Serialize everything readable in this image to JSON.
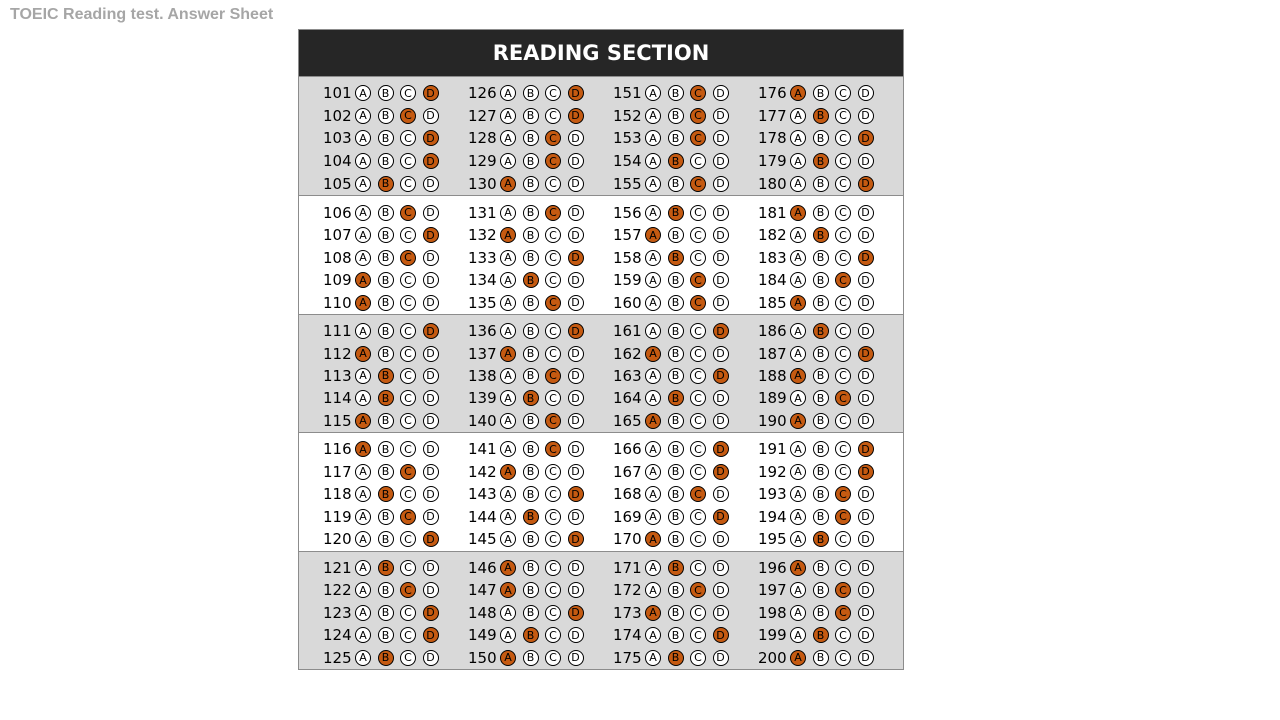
{
  "page_title": "TOEIC Reading test. Answer Sheet",
  "section_title": "READING SECTION",
  "choices": [
    "A",
    "B",
    "C",
    "D"
  ],
  "colors": {
    "header_bg": "#262626",
    "shade_bg": "#d9d9d9",
    "filled_bubble": "#c55a11",
    "title_text": "#a6a6a6"
  },
  "answers": {
    "101": "D",
    "102": "C",
    "103": "D",
    "104": "D",
    "105": "B",
    "106": "C",
    "107": "D",
    "108": "C",
    "109": "A",
    "110": "A",
    "111": "D",
    "112": "A",
    "113": "B",
    "114": "B",
    "115": "A",
    "116": "A",
    "117": "C",
    "118": "B",
    "119": "C",
    "120": "D",
    "121": "B",
    "122": "C",
    "123": "D",
    "124": "D",
    "125": "B",
    "126": "D",
    "127": "D",
    "128": "C",
    "129": "C",
    "130": "A",
    "131": "C",
    "132": "A",
    "133": "D",
    "134": "B",
    "135": "C",
    "136": "D",
    "137": "A",
    "138": "C",
    "139": "B",
    "140": "C",
    "141": "C",
    "142": "A",
    "143": "D",
    "144": "B",
    "145": "D",
    "146": "A",
    "147": "A",
    "148": "D",
    "149": "B",
    "150": "A",
    "151": "C",
    "152": "C",
    "153": "C",
    "154": "B",
    "155": "C",
    "156": "B",
    "157": "A",
    "158": "B",
    "159": "C",
    "160": "C",
    "161": "D",
    "162": "A",
    "163": "D",
    "164": "B",
    "165": "A",
    "166": "D",
    "167": "D",
    "168": "C",
    "169": "D",
    "170": "A",
    "171": "B",
    "172": "C",
    "173": "A",
    "174": "D",
    "175": "B",
    "176": "A",
    "177": "B",
    "178": "D",
    "179": "B",
    "180": "D",
    "181": "A",
    "182": "B",
    "183": "D",
    "184": "C",
    "185": "A",
    "186": "B",
    "187": "D",
    "188": "A",
    "189": "C",
    "190": "A",
    "191": "D",
    "192": "D",
    "193": "C",
    "194": "C",
    "195": "B",
    "196": "A",
    "197": "C",
    "198": "C",
    "199": "B",
    "200": "A"
  }
}
